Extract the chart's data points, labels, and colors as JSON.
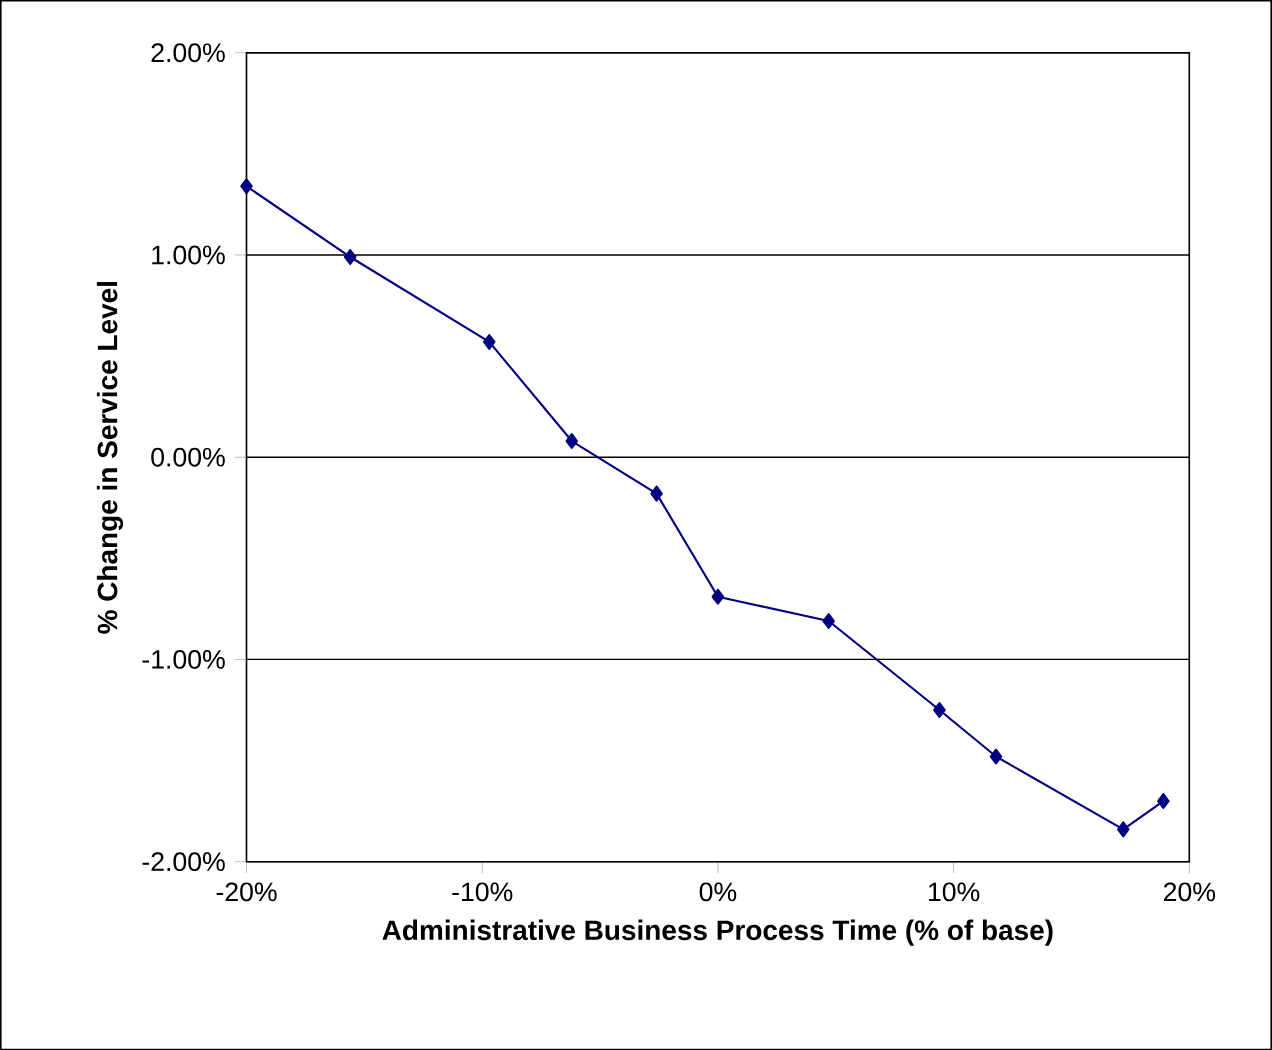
{
  "chart_data": {
    "type": "line",
    "xlabel": "Administrative Business Process Time (% of base)",
    "ylabel": "% Change in Service Level",
    "x": [
      -20,
      -15.6,
      -9.7,
      -6.2,
      -2.6,
      0,
      4.7,
      9.4,
      11.8,
      17.2,
      18.9
    ],
    "series": [
      {
        "color": "#000080",
        "values": [
          1.34,
          0.99,
          0.57,
          0.08,
          -0.18,
          -0.69,
          -0.81,
          -1.25,
          -1.48,
          -1.84,
          -1.7
        ]
      }
    ],
    "xlim": [
      -20,
      20
    ],
    "ylim": [
      -2,
      2
    ],
    "xticks": [
      {
        "value": -20,
        "label": "-20%"
      },
      {
        "value": -10,
        "label": "-10%"
      },
      {
        "value": 0,
        "label": "0%"
      },
      {
        "value": 10,
        "label": "10%"
      },
      {
        "value": 20,
        "label": "20%"
      }
    ],
    "yticks": [
      {
        "value": -2,
        "label": "-2.00%"
      },
      {
        "value": -1,
        "label": "-1.00%"
      },
      {
        "value": 0,
        "label": "0.00%"
      },
      {
        "value": 1,
        "label": "1.00%"
      },
      {
        "value": 2,
        "label": "2.00%"
      }
    ],
    "grid": "y",
    "marker": "diamond",
    "line_style": "solid"
  }
}
